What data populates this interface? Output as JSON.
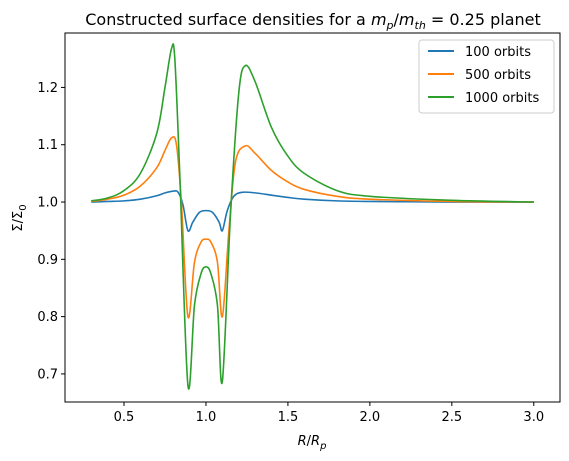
{
  "chart_data": {
    "type": "line",
    "title": "Constructed surface densities for a m_p/m_th = 0.25 planet",
    "xlabel": "R/R_p",
    "ylabel": "Σ/Σ_0",
    "xlim": [
      0.14,
      3.16
    ],
    "ylim": [
      0.651,
      1.295
    ],
    "xticks": [
      0.5,
      1.0,
      1.5,
      2.0,
      2.5,
      3.0
    ],
    "yticks": [
      0.7,
      0.8,
      0.9,
      1.0,
      1.1,
      1.2
    ],
    "xtick_labels": [
      "0.5",
      "1.0",
      "1.5",
      "2.0",
      "2.5",
      "3.0"
    ],
    "ytick_labels": [
      "0.7",
      "0.8",
      "0.9",
      "1.0",
      "1.1",
      "1.2"
    ],
    "grid": false,
    "legend_position": "top-right",
    "series": [
      {
        "name": "100 orbits",
        "color": "#1f77b4",
        "points": [
          [
            0.3,
            1.0
          ],
          [
            0.4,
            1.001
          ],
          [
            0.5,
            1.002
          ],
          [
            0.6,
            1.005
          ],
          [
            0.7,
            1.011
          ],
          [
            0.75,
            1.016
          ],
          [
            0.8,
            1.019
          ],
          [
            0.83,
            1.017
          ],
          [
            0.86,
            0.995
          ],
          [
            0.89,
            0.95
          ],
          [
            0.92,
            0.965
          ],
          [
            0.96,
            0.982
          ],
          [
            1.0,
            0.985
          ],
          [
            1.04,
            0.982
          ],
          [
            1.08,
            0.965
          ],
          [
            1.1,
            0.95
          ],
          [
            1.13,
            0.985
          ],
          [
            1.17,
            1.01
          ],
          [
            1.22,
            1.017
          ],
          [
            1.3,
            1.016
          ],
          [
            1.4,
            1.012
          ],
          [
            1.5,
            1.008
          ],
          [
            1.6,
            1.005
          ],
          [
            1.8,
            1.002
          ],
          [
            2.0,
            1.001
          ],
          [
            2.5,
            1.0
          ],
          [
            3.0,
            1.0
          ]
        ]
      },
      {
        "name": "500 orbits",
        "color": "#ff7f0e",
        "points": [
          [
            0.3,
            1.001
          ],
          [
            0.4,
            1.005
          ],
          [
            0.5,
            1.012
          ],
          [
            0.6,
            1.028
          ],
          [
            0.7,
            1.06
          ],
          [
            0.75,
            1.09
          ],
          [
            0.79,
            1.112
          ],
          [
            0.82,
            1.1
          ],
          [
            0.85,
            1.0
          ],
          [
            0.89,
            0.8
          ],
          [
            0.93,
            0.895
          ],
          [
            0.97,
            0.93
          ],
          [
            1.0,
            0.935
          ],
          [
            1.03,
            0.93
          ],
          [
            1.07,
            0.895
          ],
          [
            1.1,
            0.8
          ],
          [
            1.14,
            0.95
          ],
          [
            1.18,
            1.07
          ],
          [
            1.24,
            1.098
          ],
          [
            1.3,
            1.085
          ],
          [
            1.4,
            1.055
          ],
          [
            1.5,
            1.035
          ],
          [
            1.6,
            1.022
          ],
          [
            1.8,
            1.01
          ],
          [
            2.0,
            1.005
          ],
          [
            2.5,
            1.001
          ],
          [
            3.0,
            1.0
          ]
        ]
      },
      {
        "name": "1000 orbits",
        "color": "#2ca02c",
        "points": [
          [
            0.3,
            1.002
          ],
          [
            0.4,
            1.007
          ],
          [
            0.5,
            1.02
          ],
          [
            0.6,
            1.05
          ],
          [
            0.7,
            1.12
          ],
          [
            0.75,
            1.2
          ],
          [
            0.79,
            1.268
          ],
          [
            0.81,
            1.25
          ],
          [
            0.84,
            1.05
          ],
          [
            0.89,
            0.68
          ],
          [
            0.93,
            0.82
          ],
          [
            0.97,
            0.875
          ],
          [
            1.0,
            0.887
          ],
          [
            1.03,
            0.875
          ],
          [
            1.07,
            0.82
          ],
          [
            1.1,
            0.687
          ],
          [
            1.15,
            0.98
          ],
          [
            1.2,
            1.19
          ],
          [
            1.24,
            1.238
          ],
          [
            1.3,
            1.21
          ],
          [
            1.4,
            1.13
          ],
          [
            1.5,
            1.08
          ],
          [
            1.6,
            1.05
          ],
          [
            1.8,
            1.02
          ],
          [
            2.0,
            1.01
          ],
          [
            2.5,
            1.003
          ],
          [
            3.0,
            1.0
          ]
        ]
      }
    ]
  }
}
